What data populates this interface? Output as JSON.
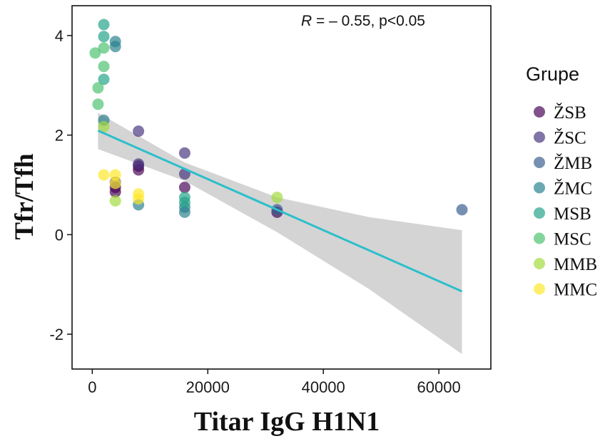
{
  "chart_data": {
    "type": "scatter",
    "xlabel": "Titar IgG H1N1",
    "ylabel": "Tfr/Tfh",
    "xlim": [
      -3500,
      69000
    ],
    "ylim": [
      -2.7,
      4.6
    ],
    "xticks": [
      0,
      20000,
      40000,
      60000
    ],
    "yticks": [
      -2,
      0,
      2,
      4
    ],
    "xtick_labels": [
      "0",
      "20000",
      "40000",
      "60000"
    ],
    "ytick_labels": [
      "-2",
      "0",
      "2",
      "4"
    ],
    "grid": false,
    "annotation": {
      "stat_symbol": "R",
      "stat_rest": " = – 0.55, p<0.05",
      "position": "top-right"
    },
    "legend": {
      "title": "Grupe",
      "placement": "right"
    },
    "regression": {
      "x": [
        1000,
        64000
      ],
      "y": [
        2.09,
        -1.14
      ],
      "color": "#2bbfcb",
      "ci_upper": [
        [
          1000,
          2.45
        ],
        [
          16000,
          1.45
        ],
        [
          32000,
          0.75
        ],
        [
          48000,
          0.35
        ],
        [
          64000,
          0.09
        ]
      ],
      "ci_lower": [
        [
          1000,
          1.72
        ],
        [
          16000,
          1.08
        ],
        [
          32000,
          0.05
        ],
        [
          48000,
          -1.1
        ],
        [
          64000,
          -2.4
        ]
      ],
      "ci_color": "#d4d4d4"
    },
    "series": [
      {
        "name": "ŽSB",
        "color": "#440154",
        "points": [
          [
            4000,
            0.86
          ],
          [
            4000,
            0.95
          ],
          [
            8000,
            1.3
          ],
          [
            8000,
            1.38
          ],
          [
            16000,
            0.95
          ],
          [
            32000,
            0.45
          ]
        ]
      },
      {
        "name": "ŽSC",
        "color": "#46327e",
        "points": [
          [
            4000,
            1.05
          ],
          [
            8000,
            1.42
          ],
          [
            8000,
            2.08
          ],
          [
            16000,
            1.22
          ],
          [
            16000,
            1.64
          ]
        ]
      },
      {
        "name": "ŽMB",
        "color": "#365c8d",
        "points": [
          [
            32000,
            0.5
          ],
          [
            64000,
            0.5
          ]
        ]
      },
      {
        "name": "ŽMC",
        "color": "#277f8e",
        "points": [
          [
            2000,
            2.3
          ],
          [
            4000,
            3.78
          ],
          [
            4000,
            3.88
          ],
          [
            8000,
            0.6
          ],
          [
            16000,
            0.45
          ],
          [
            16000,
            0.55
          ]
        ]
      },
      {
        "name": "MSB",
        "color": "#1fa187",
        "points": [
          [
            2000,
            3.12
          ],
          [
            2000,
            3.98
          ],
          [
            2000,
            4.22
          ],
          [
            16000,
            0.65
          ],
          [
            16000,
            0.75
          ]
        ]
      },
      {
        "name": "MSC",
        "color": "#4ac16d",
        "points": [
          [
            500,
            3.65
          ],
          [
            1000,
            2.62
          ],
          [
            1000,
            2.95
          ],
          [
            2000,
            3.38
          ],
          [
            2000,
            3.75
          ]
        ]
      },
      {
        "name": "MMB",
        "color": "#a0da39",
        "points": [
          [
            2000,
            2.17
          ],
          [
            4000,
            0.68
          ],
          [
            32000,
            0.75
          ]
        ]
      },
      {
        "name": "MMC",
        "color": "#fde725",
        "points": [
          [
            2000,
            1.2
          ],
          [
            4000,
            1.2
          ],
          [
            4000,
            1.03
          ],
          [
            8000,
            0.72
          ],
          [
            8000,
            0.82
          ]
        ]
      }
    ]
  }
}
